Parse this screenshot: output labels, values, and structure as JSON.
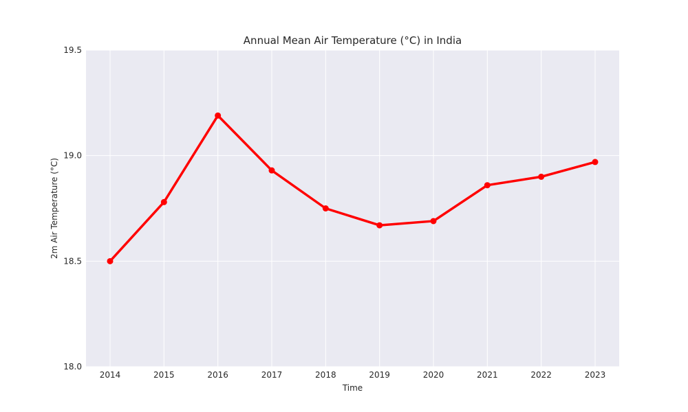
{
  "chart_data": {
    "type": "line",
    "title": "Annual Mean Air Temperature (°C) in India",
    "xlabel": "Time",
    "ylabel": "2m Air Temperature (°C)",
    "x": [
      "2014",
      "2015",
      "2016",
      "2017",
      "2018",
      "2019",
      "2020",
      "2021",
      "2022",
      "2023"
    ],
    "series": [
      {
        "values": [
          18.5,
          18.78,
          19.19,
          18.93,
          18.75,
          18.67,
          18.69,
          18.86,
          18.9,
          18.97
        ],
        "color": "#ff0000"
      }
    ],
    "ylim": [
      18.0,
      19.5
    ],
    "yticks": [
      "18.0",
      "18.5",
      "19.0",
      "19.5"
    ],
    "grid": true,
    "background": "#eaeaf2",
    "grid_color": "#ffffff"
  }
}
